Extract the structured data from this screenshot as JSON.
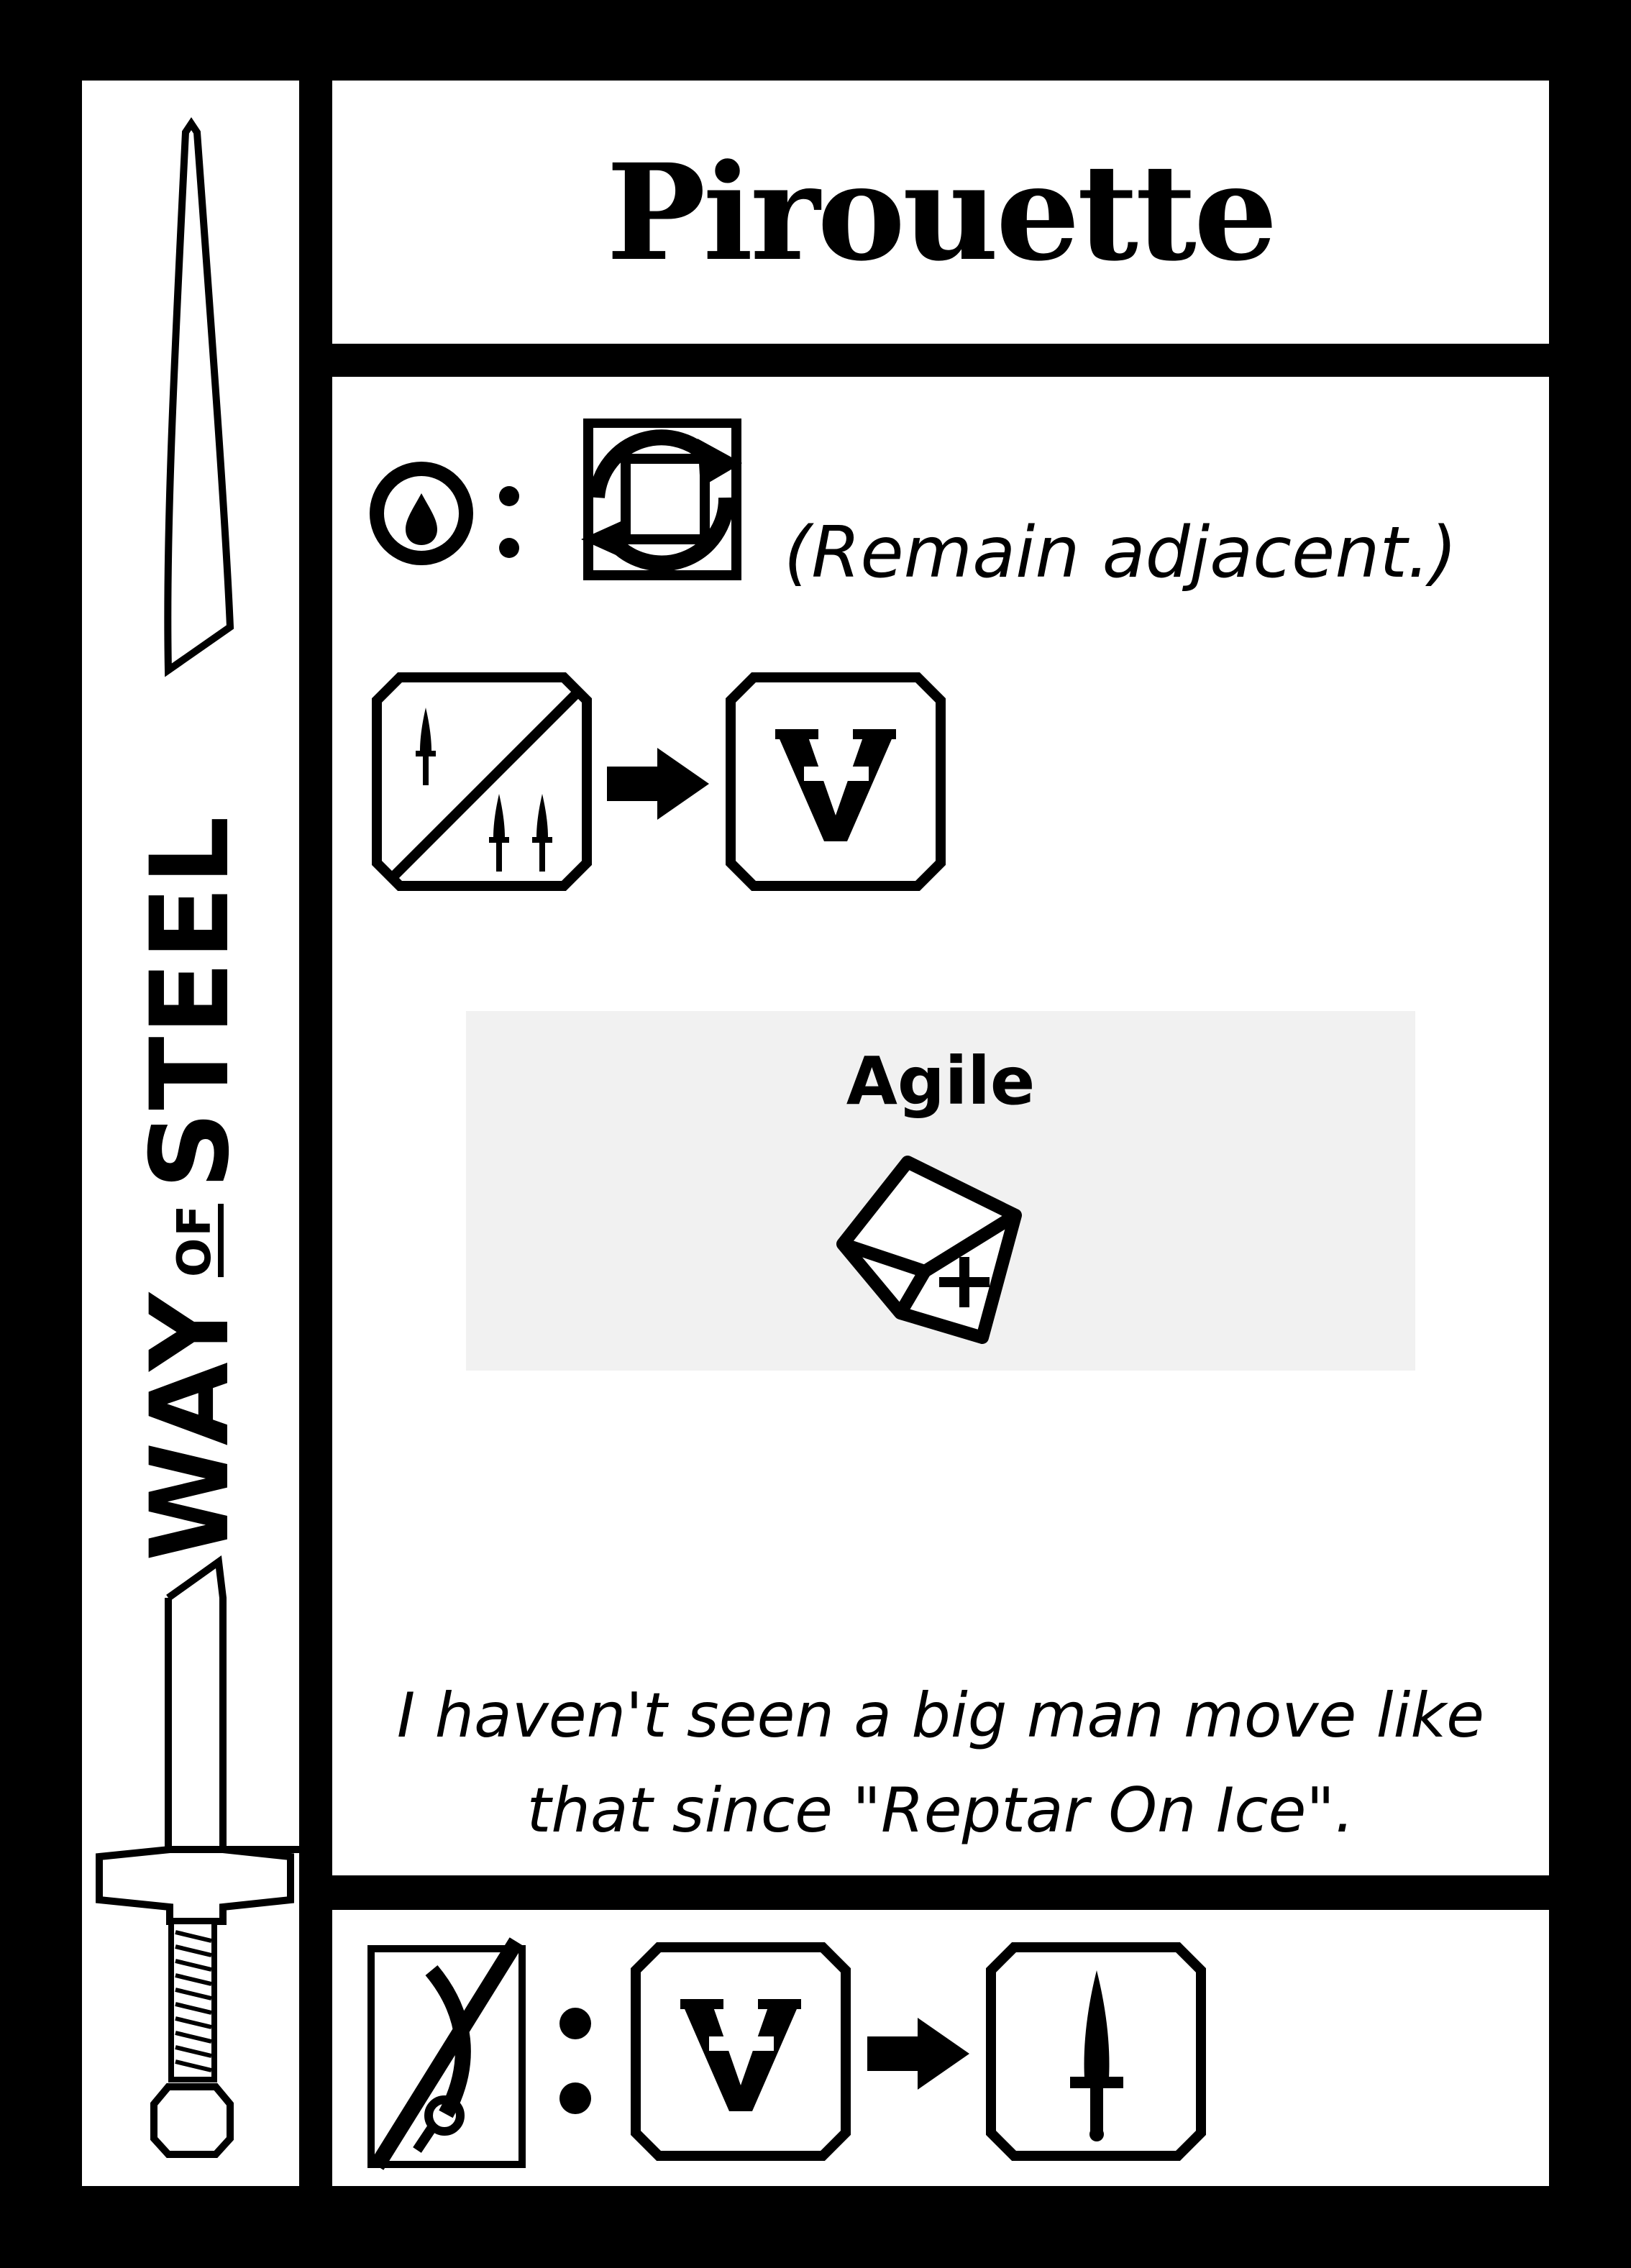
{
  "game": {
    "logo_text": {
      "main_left": "WAY",
      "small": "OF",
      "main_right": "STEEL"
    },
    "card": {
      "title": "Pirouette",
      "effect_note": "(Remain adjacent.)",
      "keyword": "Agile",
      "flavor_line1": "I haven't seen a big man move like",
      "flavor_line2": "that since \"Reptar On Ice\"."
    },
    "icons": {
      "cost": "drop-in-circle-icon",
      "effect": "rotate-square-icon",
      "trigger": "one-or-three-swords-icon",
      "result": "inverted-a-icon",
      "keyword": "dice-plus-icon",
      "footer_condition": "no-sabre-icon",
      "footer_cost": "inverted-a-icon",
      "footer_result": "dagger-icon"
    }
  }
}
